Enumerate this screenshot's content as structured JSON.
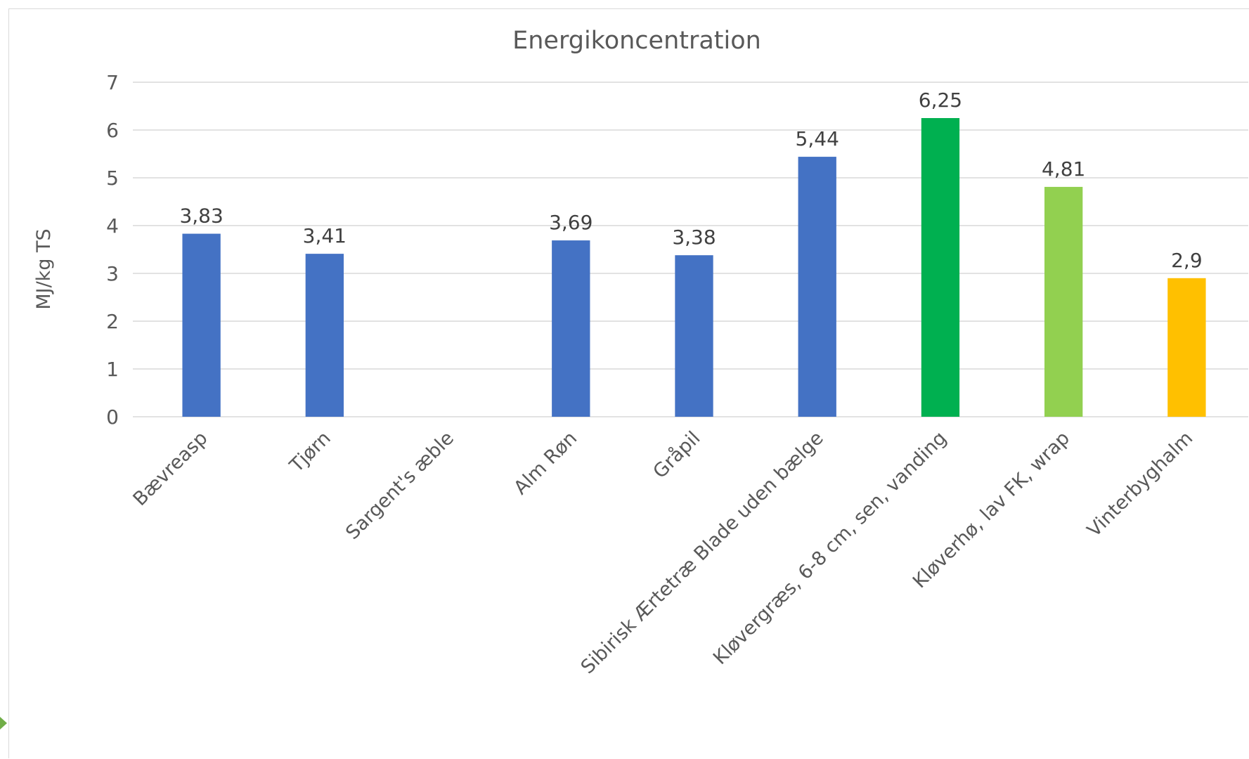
{
  "colors": {
    "blue": "#4472c4",
    "dark_green": "#00b050",
    "light_green": "#92d050",
    "gold": "#ffc000",
    "grid": "#d9d9d9",
    "text": "#595959"
  },
  "chart_data": {
    "type": "bar",
    "title": "Energikoncentration",
    "xlabel": "",
    "ylabel": "MJ/kg TS",
    "ylim": [
      0,
      7
    ],
    "yticks": [
      0,
      1,
      2,
      3,
      4,
      5,
      6,
      7
    ],
    "grid": true,
    "legend": "none",
    "categories": [
      "Bævreasp",
      "Tjørn",
      "Sargent's æble",
      "Alm Røn",
      "Gråpil",
      "Sibirisk Ærtetræ Blade uden bælge",
      "Kløvergræs, 6-8 cm, sen, vanding",
      "Kløverhø, lav FK, wrap",
      "Vinterbyghalm"
    ],
    "values": [
      3.83,
      3.41,
      null,
      3.69,
      3.38,
      5.44,
      6.25,
      4.81,
      2.9
    ],
    "data_labels": [
      "3,83",
      "3,41",
      "",
      "3,69",
      "3,38",
      "5,44",
      "6,25",
      "4,81",
      "2,9"
    ],
    "bar_colors": [
      "#4472c4",
      "#4472c4",
      "#4472c4",
      "#4472c4",
      "#4472c4",
      "#4472c4",
      "#00b050",
      "#92d050",
      "#ffc000"
    ]
  }
}
